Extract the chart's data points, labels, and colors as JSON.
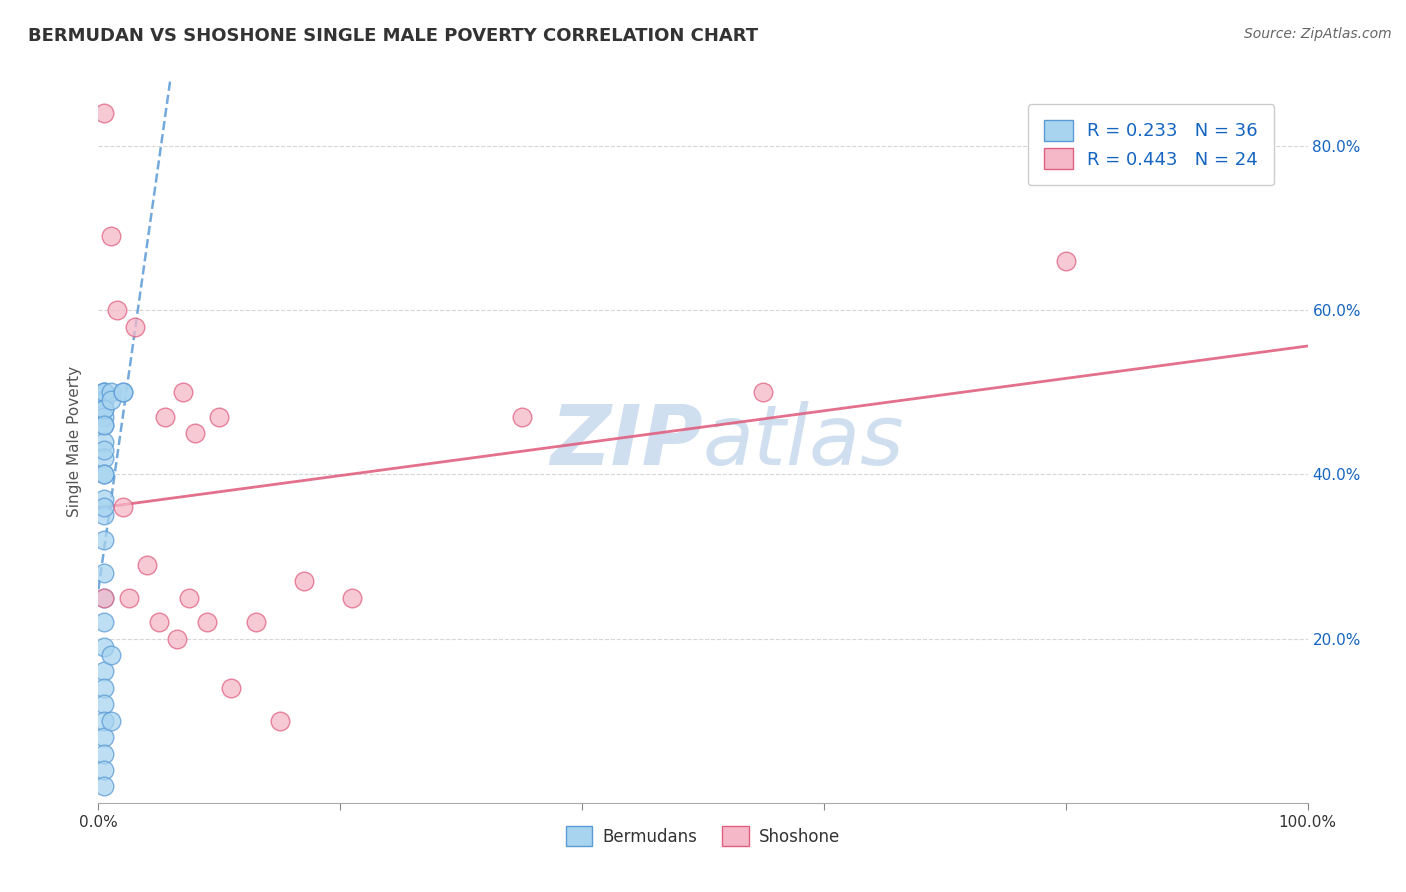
{
  "title": "BERMUDAN VS SHOSHONE SINGLE MALE POVERTY CORRELATION CHART",
  "source": "Source: ZipAtlas.com",
  "ylabel": "Single Male Poverty",
  "xlim": [
    0.0,
    1.0
  ],
  "ylim": [
    0.0,
    0.88
  ],
  "ytick_vals": [
    0.2,
    0.4,
    0.6,
    0.8
  ],
  "ytick_labels": [
    "20.0%",
    "40.0%",
    "60.0%",
    "80.0%"
  ],
  "xtick_vals": [
    0.0,
    0.2,
    0.4,
    0.6,
    0.8,
    1.0
  ],
  "xtick_edge_labels": {
    "0.0": "0.0%",
    "1.0": "100.0%"
  },
  "bermudan_color": "#A8D4F0",
  "shoshone_color": "#F5B8C8",
  "bermudan_edge_color": "#5B9BD5",
  "shoshone_edge_color": "#E06080",
  "bermudan_line_color": "#5B9BD5",
  "shoshone_line_color": "#E06080",
  "legend_text_color": "#1565C0",
  "watermark_color": "#D0DFF0",
  "R_bermudan": 0.233,
  "N_bermudan": 36,
  "R_shoshone": 0.443,
  "N_shoshone": 24,
  "bermudan_x": [
    0.005,
    0.005,
    0.005,
    0.005,
    0.005,
    0.005,
    0.005,
    0.005,
    0.005,
    0.005,
    0.005,
    0.005,
    0.005,
    0.005,
    0.005,
    0.005,
    0.005,
    0.005,
    0.005,
    0.005,
    0.005,
    0.005,
    0.005,
    0.005,
    0.005,
    0.005,
    0.005,
    0.005,
    0.005,
    0.005,
    0.01,
    0.01,
    0.01,
    0.01,
    0.02,
    0.02
  ],
  "bermudan_y": [
    0.5,
    0.5,
    0.49,
    0.48,
    0.47,
    0.46,
    0.44,
    0.42,
    0.4,
    0.37,
    0.35,
    0.32,
    0.28,
    0.25,
    0.22,
    0.19,
    0.16,
    0.14,
    0.12,
    0.1,
    0.08,
    0.06,
    0.04,
    0.02,
    0.5,
    0.48,
    0.46,
    0.43,
    0.4,
    0.36,
    0.5,
    0.49,
    0.18,
    0.1,
    0.5,
    0.5
  ],
  "shoshone_x": [
    0.005,
    0.01,
    0.015,
    0.02,
    0.025,
    0.03,
    0.04,
    0.05,
    0.055,
    0.065,
    0.07,
    0.075,
    0.08,
    0.09,
    0.1,
    0.11,
    0.13,
    0.15,
    0.17,
    0.21,
    0.55,
    0.8,
    0.005,
    0.35
  ],
  "shoshone_y": [
    0.84,
    0.69,
    0.6,
    0.36,
    0.25,
    0.58,
    0.29,
    0.22,
    0.47,
    0.2,
    0.5,
    0.25,
    0.45,
    0.22,
    0.47,
    0.14,
    0.22,
    0.1,
    0.27,
    0.25,
    0.5,
    0.66,
    0.25,
    0.47
  ]
}
